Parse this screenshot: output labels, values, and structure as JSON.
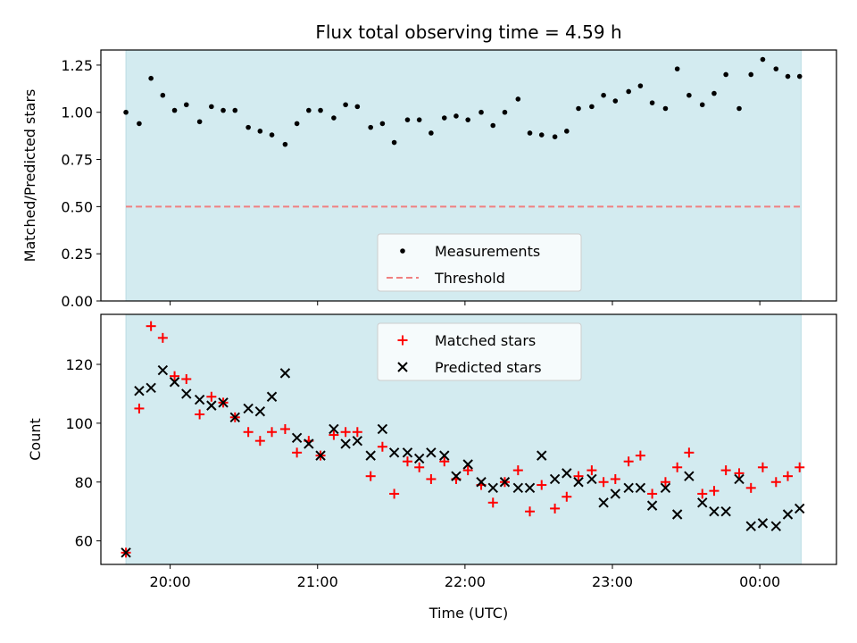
{
  "chart_data": {
    "title": "Flux total observing time = 4.59 h",
    "xlabel": "Time (UTC)",
    "x_tick_labels": [
      "20:00",
      "21:00",
      "22:00",
      "23:00",
      "00:00"
    ],
    "x_tick_hours": [
      20,
      21,
      22,
      23,
      24
    ],
    "xlim_hours": [
      19.53,
      24.52
    ],
    "shaded_span_hours": [
      19.7,
      24.28
    ],
    "colors": {
      "shade": "#d3ebf0",
      "threshold": "#f08080",
      "measure": "#000000",
      "matched": "#ff0000",
      "predicted": "#000000"
    },
    "panels": [
      {
        "type": "scatter",
        "ylabel": "Matched/Predicted stars",
        "ylim": [
          0,
          1.33
        ],
        "y_ticks": [
          0.0,
          0.25,
          0.5,
          0.75,
          1.0,
          1.25
        ],
        "y_tick_labels": [
          "0.00",
          "0.25",
          "0.50",
          "0.75",
          "1.00",
          "1.25"
        ],
        "threshold": 0.5,
        "legend": {
          "placement": "lower-center",
          "entries": [
            "Measurements",
            "Threshold"
          ]
        },
        "series": [
          {
            "name": "Measurements",
            "marker": "dot",
            "x": [
              19.7,
              19.79,
              19.87,
              19.95,
              20.03,
              20.11,
              20.2,
              20.28,
              20.36,
              20.44,
              20.53,
              20.61,
              20.69,
              20.78,
              20.86,
              20.94,
              21.02,
              21.11,
              21.19,
              21.27,
              21.36,
              21.44,
              21.52,
              21.61,
              21.69,
              21.77,
              21.86,
              21.94,
              22.02,
              22.11,
              22.19,
              22.27,
              22.36,
              22.44,
              22.52,
              22.61,
              22.69,
              22.77,
              22.86,
              22.94,
              23.02,
              23.11,
              23.19,
              23.27,
              23.36,
              23.44,
              23.52,
              23.61,
              23.69,
              23.77,
              23.86,
              23.94,
              24.02,
              24.11,
              24.19,
              24.27
            ],
            "y": [
              1.0,
              0.94,
              1.18,
              1.09,
              1.01,
              1.04,
              0.95,
              1.03,
              1.01,
              1.01,
              0.92,
              0.9,
              0.88,
              0.83,
              0.94,
              1.01,
              1.01,
              0.97,
              1.04,
              1.03,
              0.92,
              0.94,
              0.84,
              0.96,
              0.96,
              0.89,
              0.97,
              0.98,
              0.96,
              1.0,
              0.93,
              1.0,
              1.07,
              0.89,
              0.88,
              0.87,
              0.9,
              1.02,
              1.03,
              1.09,
              1.06,
              1.11,
              1.14,
              1.05,
              1.02,
              1.23,
              1.09,
              1.04,
              1.1,
              1.2,
              1.02,
              1.2,
              1.28,
              1.23,
              1.19,
              1.19
            ]
          }
        ]
      },
      {
        "type": "scatter",
        "ylabel": "Count",
        "ylim": [
          52,
          137
        ],
        "y_ticks": [
          60,
          80,
          100,
          120
        ],
        "y_tick_labels": [
          "60",
          "80",
          "100",
          "120"
        ],
        "legend": {
          "placement": "upper-center",
          "entries": [
            "Matched stars",
            "Predicted stars"
          ]
        },
        "series": [
          {
            "name": "Matched stars",
            "marker": "plus",
            "x": [
              19.7,
              19.79,
              19.87,
              19.95,
              20.03,
              20.11,
              20.2,
              20.28,
              20.36,
              20.44,
              20.53,
              20.61,
              20.69,
              20.78,
              20.86,
              20.94,
              21.02,
              21.11,
              21.19,
              21.27,
              21.36,
              21.44,
              21.52,
              21.61,
              21.69,
              21.77,
              21.86,
              21.94,
              22.02,
              22.11,
              22.19,
              22.27,
              22.36,
              22.44,
              22.52,
              22.61,
              22.69,
              22.77,
              22.86,
              22.94,
              23.02,
              23.11,
              23.19,
              23.27,
              23.36,
              23.44,
              23.52,
              23.61,
              23.69,
              23.77,
              23.86,
              23.94,
              24.02,
              24.11,
              24.19,
              24.27
            ],
            "y": [
              56,
              105,
              133,
              129,
              116,
              115,
              103,
              109,
              107,
              102,
              97,
              94,
              97,
              98,
              90,
              94,
              89,
              96,
              97,
              97,
              82,
              92,
              76,
              87,
              85,
              81,
              87,
              81,
              84,
              79,
              73,
              80,
              84,
              70,
              79,
              71,
              75,
              82,
              84,
              80,
              81,
              87,
              89,
              76,
              80,
              85,
              90,
              76,
              77,
              84,
              83,
              78,
              85,
              80,
              82,
              85
            ]
          },
          {
            "name": "Predicted stars",
            "marker": "cross",
            "x": [
              19.7,
              19.79,
              19.87,
              19.95,
              20.03,
              20.11,
              20.2,
              20.28,
              20.36,
              20.44,
              20.53,
              20.61,
              20.69,
              20.78,
              20.86,
              20.94,
              21.02,
              21.11,
              21.19,
              21.27,
              21.36,
              21.44,
              21.52,
              21.61,
              21.69,
              21.77,
              21.86,
              21.94,
              22.02,
              22.11,
              22.19,
              22.27,
              22.36,
              22.44,
              22.52,
              22.61,
              22.69,
              22.77,
              22.86,
              22.94,
              23.02,
              23.11,
              23.19,
              23.27,
              23.36,
              23.44,
              23.52,
              23.61,
              23.69,
              23.77,
              23.86,
              23.94,
              24.02,
              24.11,
              24.19,
              24.27
            ],
            "y": [
              56,
              111,
              112,
              118,
              114,
              110,
              108,
              106,
              107,
              102,
              105,
              104,
              109,
              117,
              95,
              93,
              89,
              98,
              93,
              94,
              89,
              98,
              90,
              90,
              88,
              90,
              89,
              82,
              86,
              80,
              78,
              80,
              78,
              78,
              89,
              81,
              83,
              80,
              81,
              73,
              76,
              78,
              78,
              72,
              78,
              69,
              82,
              73,
              70,
              70,
              81,
              65,
              66,
              65,
              69,
              71
            ]
          }
        ]
      }
    ]
  }
}
